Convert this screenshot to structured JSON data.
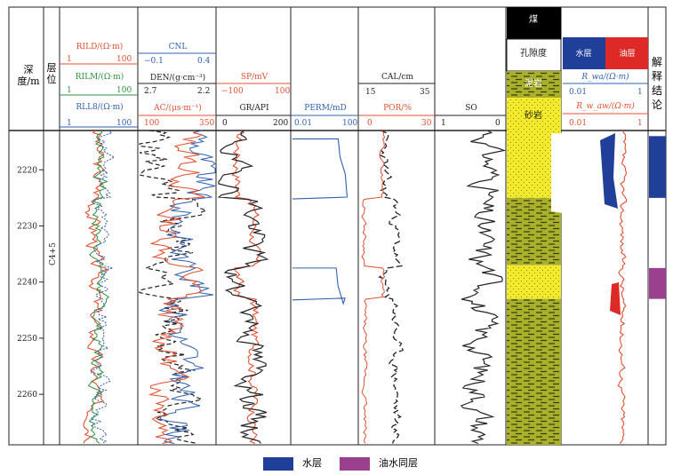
{
  "headers": {
    "depth": "深度/m",
    "layer": "层位",
    "rild": "RILD/(Ω·m)",
    "rild_min": "1",
    "rild_max": "100",
    "rilm": "RILM/(Ω·m)",
    "rilm_min": "1",
    "rilm_max": "100",
    "rll8": "RLL8/(Ω·m)",
    "rll8_min": "1",
    "rll8_max": "100",
    "cnl": "CNL",
    "cnl_min": "−0.1",
    "cnl_max": "0.4",
    "den": "DEN/(g·cm⁻³)",
    "den_min": "2.7",
    "den_max": "2.2",
    "ac": "AC/(μs·m⁻¹)",
    "ac_min": "100",
    "ac_max": "350",
    "sp": "SP/mV",
    "sp_min": "−100",
    "sp_max": "100",
    "gr": "GR/API",
    "gr_min": "0",
    "gr_max": "200",
    "perm": "PERM/mD",
    "perm_min": "0.01",
    "perm_max": "100",
    "cal": "CAL/cm",
    "cal_min": "15",
    "cal_max": "35",
    "por": "POR/%",
    "por_min": "0",
    "por_max": "30",
    "so": "SO",
    "so_min": "1",
    "so_max": "0",
    "coal": "煤",
    "porosity": "孔隙度",
    "mudstone": "泥岩",
    "sandstone": "砂岩",
    "water_layer": "水层",
    "oil_layer": "油层",
    "rwa": "R_wa/(Ω·m)",
    "rwa_min": "0.01",
    "rwa_max": "1",
    "rwaw": "R_w_aw/(Ω·m)",
    "rwaw_min": "0.01",
    "rwaw_max": "1",
    "interp": "解释结论"
  },
  "layer_name": "C4+5",
  "legend": [
    {
      "label": "水层",
      "color": "#1f3f99"
    },
    {
      "label": "油水同层",
      "color": "#9b3f8f"
    }
  ],
  "colors": {
    "rild": "#e05030",
    "rilm": "#2f8f3f",
    "rll8": "#2f5fb0",
    "cnl": "#3060b0",
    "den": "#222222",
    "ac": "#e05030",
    "sp": "#e05030",
    "gr": "#222222",
    "perm": "#3060b0",
    "cal": "#222222",
    "por": "#e05030",
    "so": "#222222"
  },
  "chart_data": {
    "type": "well-log",
    "depth_range": [
      2213,
      2269
    ],
    "depth_ticks": [
      2220,
      2230,
      2240,
      2250,
      2260
    ],
    "perm_segments": [
      {
        "top": 2214.5,
        "bottom": 2225.5,
        "value": 20
      },
      {
        "top": 2237.5,
        "bottom": 2243.5,
        "value": 15
      }
    ],
    "interpretation": [
      {
        "top": 2214,
        "bottom": 2225,
        "type": "水层"
      },
      {
        "top": 2237.5,
        "bottom": 2243,
        "type": "油水同层"
      }
    ],
    "lithology": [
      {
        "top": 2213,
        "bottom": 2225,
        "rock": "砂岩"
      },
      {
        "top": 2225,
        "bottom": 2237,
        "rock": "泥岩"
      },
      {
        "top": 2237,
        "bottom": 2243,
        "rock": "砂岩"
      },
      {
        "top": 2243,
        "bottom": 2269,
        "rock": "泥岩"
      }
    ]
  }
}
